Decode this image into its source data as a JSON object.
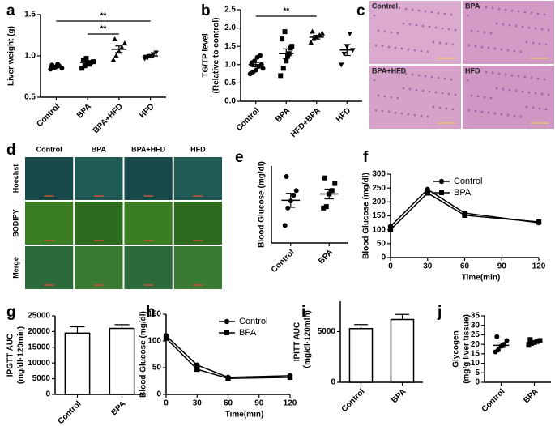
{
  "chart_data": [
    {
      "type": "dot",
      "panel": "a",
      "ylabel": [
        "Liver weight (g)"
      ],
      "categories": [
        "Control",
        "BPA",
        "BPA+HFD",
        "HFD"
      ],
      "markers": [
        "circle",
        "square",
        "triangle",
        "triangle-down"
      ],
      "points": [
        [
          0.84,
          0.86,
          0.87,
          0.88,
          0.85,
          0.89,
          0.86,
          0.9
        ],
        [
          0.85,
          0.88,
          0.9,
          0.92,
          0.93,
          0.95,
          0.97,
          0.9
        ],
        [
          0.95,
          1.0,
          1.05,
          1.1,
          1.15,
          1.2
        ],
        [
          0.97,
          0.98,
          1.0,
          1.02,
          1.04,
          0.99
        ]
      ],
      "means": [
        0.87,
        0.92,
        1.08,
        1.0
      ],
      "errors": [
        0.01,
        0.015,
        0.04,
        0.015
      ],
      "ylim": [
        0.5,
        1.5
      ],
      "yticks": [
        {
          "value": 0.5,
          "label": "0.5"
        },
        {
          "value": 1.0,
          "label": "1.0"
        },
        {
          "value": 1.5,
          "label": "1.5"
        }
      ],
      "annotations": [
        {
          "text": "**",
          "groups": [
            "Control",
            "HFD"
          ]
        },
        {
          "text": "**",
          "groups": [
            "BPA",
            "BPA+HFD"
          ]
        }
      ]
    },
    {
      "type": "dot",
      "panel": "b",
      "ylabel": [
        "TG/TP level",
        "(Relative to control)"
      ],
      "categories": [
        "Control",
        "BPA",
        "HFD+BPA",
        "HFD"
      ],
      "markers": [
        "circle",
        "square",
        "triangle",
        "triangle-down"
      ],
      "points": [
        [
          0.75,
          0.8,
          0.85,
          0.95,
          1.0,
          1.05,
          1.1,
          1.2,
          1.25,
          0.9,
          1.0
        ],
        [
          0.7,
          0.9,
          1.1,
          1.3,
          1.5,
          1.7,
          1.9,
          1.25,
          1.45
        ],
        [
          1.6,
          1.7,
          1.75,
          1.8,
          1.85,
          1.9
        ],
        [
          1.0,
          1.3,
          1.5,
          1.85,
          1.4
        ]
      ],
      "means": [
        1.0,
        1.3,
        1.75,
        1.4
      ],
      "errors": [
        0.06,
        0.13,
        0.05,
        0.15
      ],
      "ylim": [
        0,
        2.5
      ],
      "yticks": [
        {
          "value": 0,
          "label": "0.0"
        },
        {
          "value": 0.5,
          "label": "0.5"
        },
        {
          "value": 1.0,
          "label": "1.0"
        },
        {
          "value": 1.5,
          "label": "1.5"
        },
        {
          "value": 2.0,
          "label": "2.0"
        },
        {
          "value": 2.5,
          "label": "2.5"
        }
      ],
      "annotations": [
        {
          "text": "**",
          "groups": [
            "Control",
            "HFD+BPA"
          ]
        }
      ]
    },
    {
      "type": "image",
      "panel": "c",
      "labels": [
        "Control",
        "BPA",
        "BPA+HFD",
        "HFD"
      ]
    },
    {
      "type": "image",
      "panel": "d",
      "column_labels": [
        "Control",
        "BPA",
        "BPA+HFD",
        "HFD"
      ],
      "row_labels": [
        "Hoechst",
        "BODIPY",
        "Merge"
      ]
    },
    {
      "type": "dot",
      "panel": "e",
      "ylabel": [
        "Blood Glucose (mg/dl)"
      ],
      "categories": [
        "Control",
        "BPA"
      ],
      "markers": [
        "circle",
        "square"
      ],
      "points": [
        [
          75,
          100,
          110,
          118,
          125,
          145
        ],
        [
          100,
          102,
          120,
          125,
          135,
          143
        ]
      ],
      "means": [
        111,
        120
      ],
      "errors": [
        10,
        7
      ],
      "ylim": [
        50,
        160
      ],
      "yticks": []
    },
    {
      "type": "line",
      "panel": "f",
      "xlabel": "Time(min)",
      "ylabel": [
        "Blood Glucose (mg/dl)"
      ],
      "x": [
        0,
        30,
        60,
        120
      ],
      "series": [
        {
          "name": "Control",
          "marker": "circle",
          "values": [
            112,
            245,
            160,
            125
          ]
        },
        {
          "name": "BPA",
          "marker": "square",
          "values": [
            100,
            232,
            152,
            128
          ]
        }
      ],
      "xlim": [
        0,
        120
      ],
      "xticks": [
        0,
        30,
        60,
        90,
        120
      ],
      "ylim": [
        0,
        300
      ],
      "yticks": [
        0,
        50,
        100,
        150,
        200,
        250,
        300
      ]
    },
    {
      "type": "bar",
      "panel": "g",
      "ylabel": [
        "IPGTT AUC",
        "(mg/dl·120min)"
      ],
      "categories": [
        "Control",
        "BPA"
      ],
      "values": [
        19500,
        21000
      ],
      "errors": [
        2000,
        1200
      ],
      "ylim": [
        0,
        25000
      ],
      "yticks": [
        0,
        5000,
        10000,
        15000,
        20000,
        25000
      ]
    },
    {
      "type": "line",
      "panel": "h",
      "xlabel": "Time(min)",
      "ylabel": [
        "Blood Glucose (mg/dl)"
      ],
      "x": [
        0,
        30,
        60,
        120
      ],
      "series": [
        {
          "name": "Control",
          "marker": "circle",
          "values": [
            110,
            55,
            32,
            35
          ]
        },
        {
          "name": "BPA",
          "marker": "square",
          "values": [
            105,
            47,
            30,
            32
          ]
        }
      ],
      "xlim": [
        0,
        120
      ],
      "xticks": [
        0,
        30,
        60,
        90,
        120
      ],
      "ylim": [
        0,
        150
      ],
      "yticks": [
        0,
        50,
        100,
        150
      ]
    },
    {
      "type": "bar",
      "panel": "i",
      "ylabel": [
        "IPITT AUC",
        "（mg/dl·120min)"
      ],
      "categories": [
        "Control",
        "BPA"
      ],
      "values": [
        5300,
        6200
      ],
      "errors": [
        400,
        500
      ],
      "ylim": [
        0,
        8000
      ],
      "yticks": [
        0,
        5000
      ]
    },
    {
      "type": "dot",
      "panel": "j",
      "ylabel": [
        "Glycogen",
        "(mg/g liver tissue)"
      ],
      "categories": [
        "Control",
        "BPA"
      ],
      "markers": [
        "circle",
        "square"
      ],
      "points": [
        [
          16,
          17,
          19,
          20,
          22,
          24
        ],
        [
          19.5,
          20.5,
          21,
          21.5,
          22,
          22.5
        ]
      ],
      "means": [
        19.5,
        21
      ],
      "errors": [
        1.2,
        0.5
      ],
      "ylim": [
        0,
        35
      ],
      "yticks": [
        0,
        5,
        10,
        15,
        20,
        25,
        30,
        35
      ]
    }
  ]
}
